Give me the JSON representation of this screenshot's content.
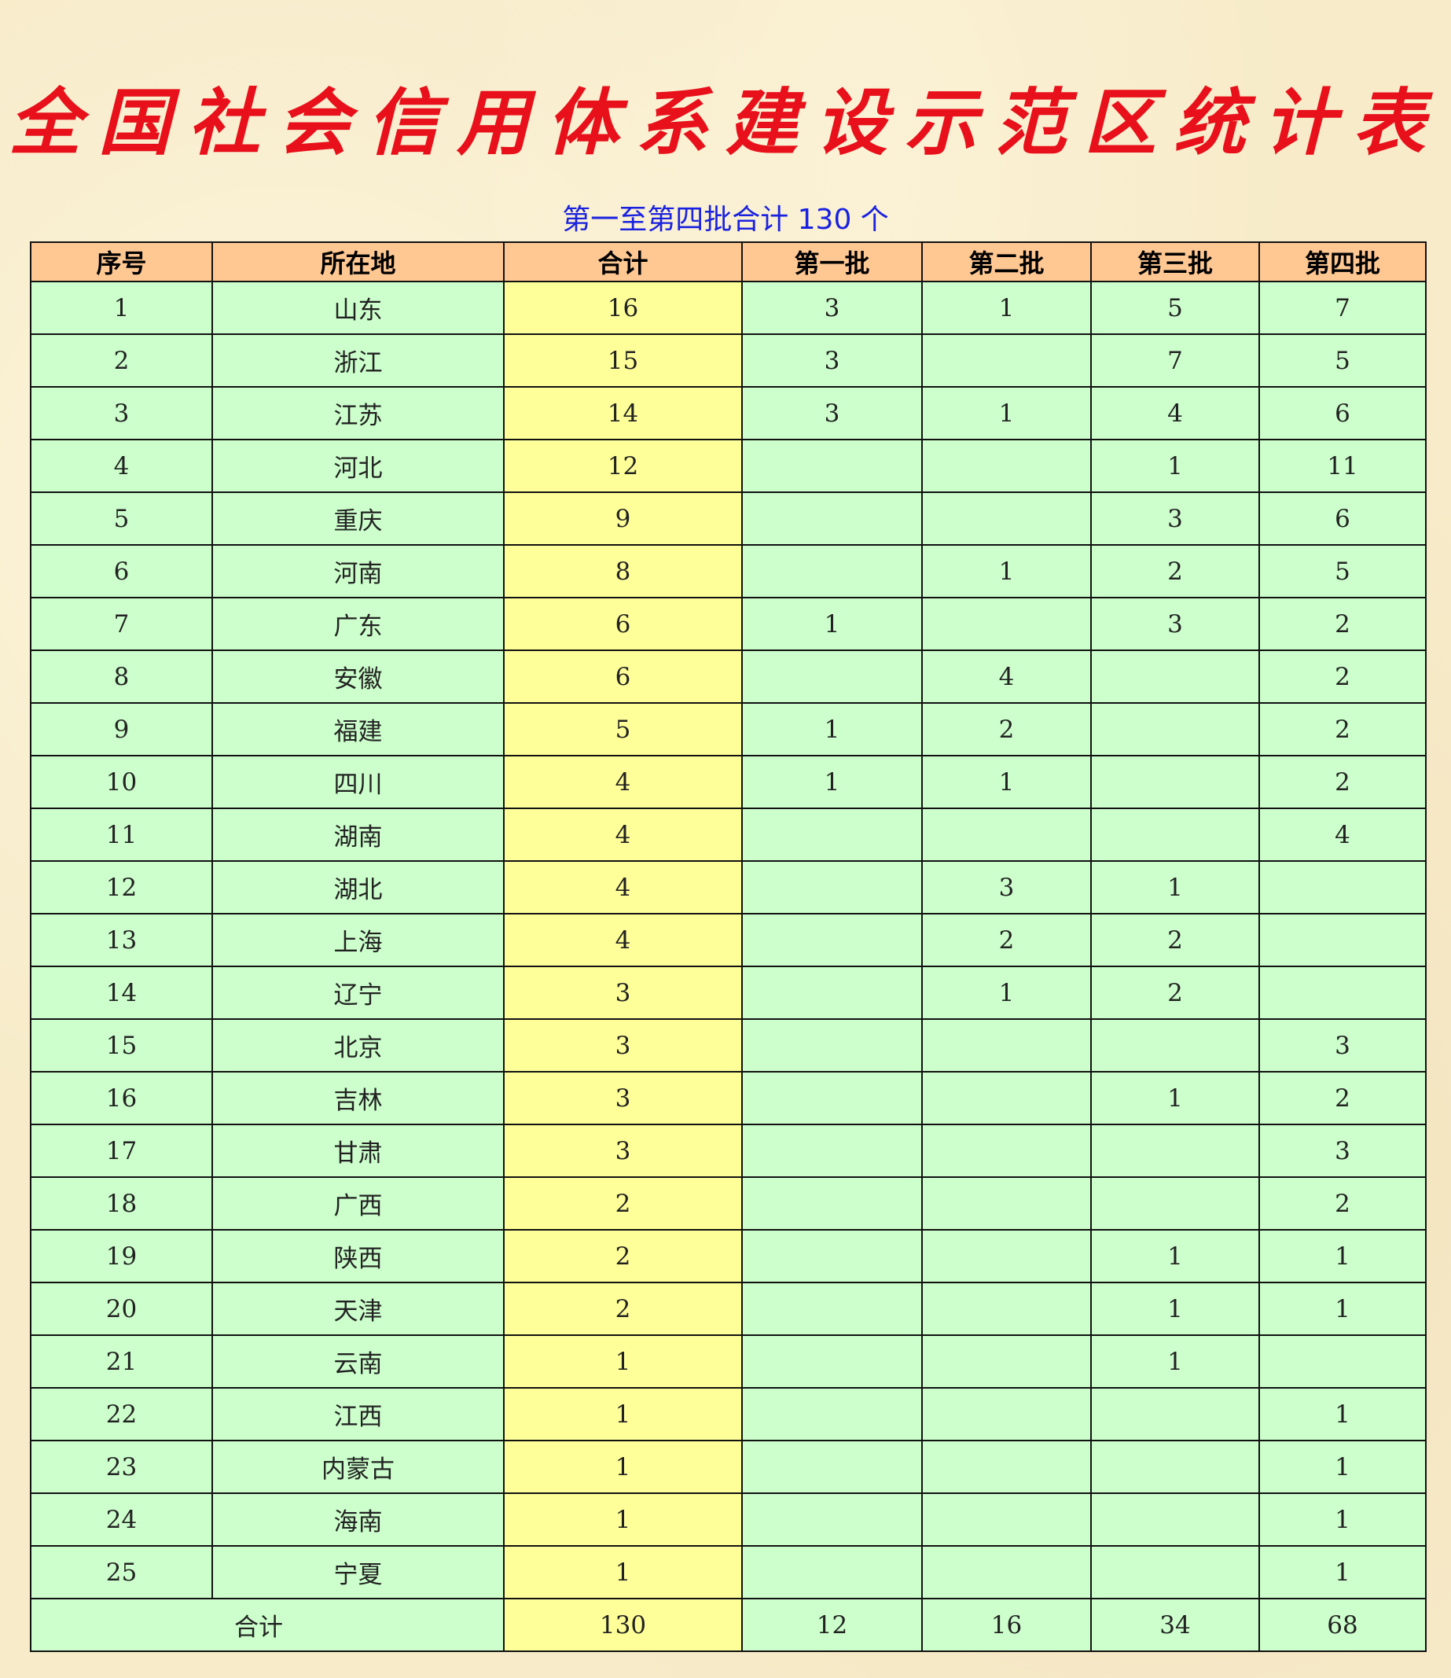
{
  "title": "全国社会信用体系建设示范区统计表",
  "subtitle": "第一至第四批合计 130 个",
  "colors": {
    "title": "#e8101a",
    "subtitle": "#1a22e0",
    "header_bg": "#ffc893",
    "cell_bg": "#ccffcc",
    "total_col_bg": "#ffff99"
  },
  "table": {
    "headers": [
      "序号",
      "所在地",
      "合计",
      "第一批",
      "第二批",
      "第三批",
      "第四批"
    ],
    "rows": [
      [
        "1",
        "山东",
        "16",
        "3",
        "1",
        "5",
        "7"
      ],
      [
        "2",
        "浙江",
        "15",
        "3",
        "",
        "7",
        "5"
      ],
      [
        "3",
        "江苏",
        "14",
        "3",
        "1",
        "4",
        "6"
      ],
      [
        "4",
        "河北",
        "12",
        "",
        "",
        "1",
        "11"
      ],
      [
        "5",
        "重庆",
        "9",
        "",
        "",
        "3",
        "6"
      ],
      [
        "6",
        "河南",
        "8",
        "",
        "1",
        "2",
        "5"
      ],
      [
        "7",
        "广东",
        "6",
        "1",
        "",
        "3",
        "2"
      ],
      [
        "8",
        "安徽",
        "6",
        "",
        "4",
        "",
        "2"
      ],
      [
        "9",
        "福建",
        "5",
        "1",
        "2",
        "",
        "2"
      ],
      [
        "10",
        "四川",
        "4",
        "1",
        "1",
        "",
        "2"
      ],
      [
        "11",
        "湖南",
        "4",
        "",
        "",
        "",
        "4"
      ],
      [
        "12",
        "湖北",
        "4",
        "",
        "3",
        "1",
        ""
      ],
      [
        "13",
        "上海",
        "4",
        "",
        "2",
        "2",
        ""
      ],
      [
        "14",
        "辽宁",
        "3",
        "",
        "1",
        "2",
        ""
      ],
      [
        "15",
        "北京",
        "3",
        "",
        "",
        "",
        "3"
      ],
      [
        "16",
        "吉林",
        "3",
        "",
        "",
        "1",
        "2"
      ],
      [
        "17",
        "甘肃",
        "3",
        "",
        "",
        "",
        "3"
      ],
      [
        "18",
        "广西",
        "2",
        "",
        "",
        "",
        "2"
      ],
      [
        "19",
        "陕西",
        "2",
        "",
        "",
        "1",
        "1"
      ],
      [
        "20",
        "天津",
        "2",
        "",
        "",
        "1",
        "1"
      ],
      [
        "21",
        "云南",
        "1",
        "",
        "",
        "1",
        ""
      ],
      [
        "22",
        "江西",
        "1",
        "",
        "",
        "",
        "1"
      ],
      [
        "23",
        "内蒙古",
        "1",
        "",
        "",
        "",
        "1"
      ],
      [
        "24",
        "海南",
        "1",
        "",
        "",
        "",
        "1"
      ],
      [
        "25",
        "宁夏",
        "1",
        "",
        "",
        "",
        "1"
      ]
    ],
    "total_row": {
      "label": "合计",
      "values": [
        "130",
        "12",
        "16",
        "34",
        "68"
      ]
    }
  }
}
